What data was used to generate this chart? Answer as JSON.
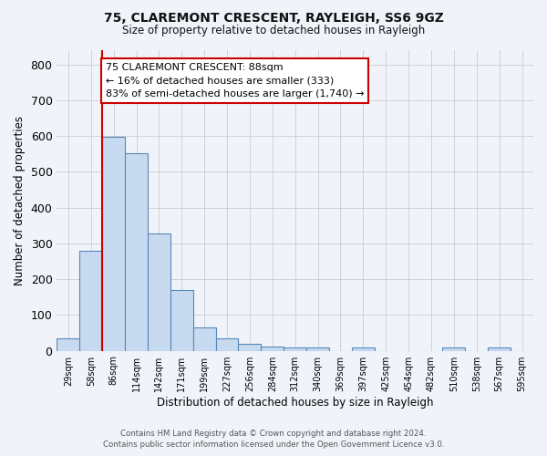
{
  "title_line1": "75, CLAREMONT CRESCENT, RAYLEIGH, SS6 9GZ",
  "title_line2": "Size of property relative to detached houses in Rayleigh",
  "xlabel": "Distribution of detached houses by size in Rayleigh",
  "ylabel": "Number of detached properties",
  "footer_line1": "Contains HM Land Registry data © Crown copyright and database right 2024.",
  "footer_line2": "Contains public sector information licensed under the Open Government Licence v3.0.",
  "bin_labels": [
    "29sqm",
    "58sqm",
    "86sqm",
    "114sqm",
    "142sqm",
    "171sqm",
    "199sqm",
    "227sqm",
    "256sqm",
    "284sqm",
    "312sqm",
    "340sqm",
    "369sqm",
    "397sqm",
    "425sqm",
    "454sqm",
    "482sqm",
    "510sqm",
    "538sqm",
    "567sqm",
    "595sqm"
  ],
  "bar_heights": [
    35,
    280,
    598,
    553,
    327,
    170,
    65,
    35,
    20,
    12,
    8,
    10,
    0,
    8,
    0,
    0,
    0,
    8,
    0,
    8,
    0
  ],
  "bar_color": "#c8daef",
  "bar_edge_color": "#5588bb",
  "ylim_max": 840,
  "yticks": [
    0,
    100,
    200,
    300,
    400,
    500,
    600,
    700,
    800
  ],
  "red_line_color": "#cc0000",
  "red_line_x": 2.0,
  "annotation_line1": "75 CLAREMONT CRESCENT: 88sqm",
  "annotation_line2": "← 16% of detached houses are smaller (333)",
  "annotation_line3": "83% of semi-detached houses are larger (1,740) →",
  "ann_box_facecolor": "#ffffff",
  "ann_box_edgecolor": "#cc0000",
  "grid_color": "#cccccc",
  "bg_color": "#f0f4fa",
  "plot_bg_color": "#f0f4fa"
}
